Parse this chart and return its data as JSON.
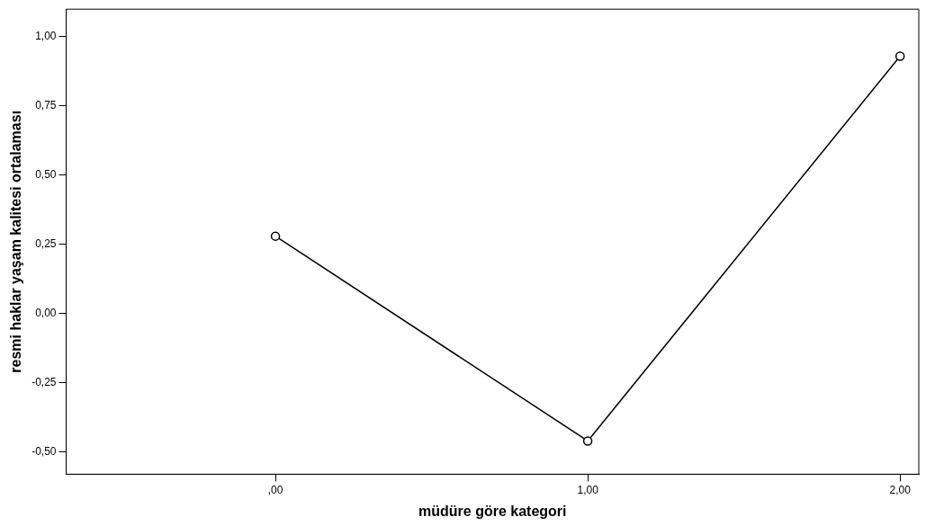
{
  "chart_data": {
    "type": "line",
    "xlabel": "müdüre göre kategori",
    "ylabel": "resmi haklar yaşam kalitesi ortalaması",
    "x": [
      0,
      1,
      2
    ],
    "series": [
      {
        "color": "#000000",
        "values": [
          0.28,
          -0.46,
          0.93
        ]
      }
    ],
    "xlim": [
      -0.67,
      2.06
    ],
    "xticks": [
      {
        "value": 0,
        "label": ",00"
      },
      {
        "value": 1,
        "label": "1,00"
      },
      {
        "value": 2,
        "label": "2,00"
      }
    ],
    "ylim": [
      -0.58,
      1.1
    ],
    "yticks": [
      {
        "value": -0.5,
        "label": "-0,50"
      },
      {
        "value": -0.25,
        "label": "-0,25"
      },
      {
        "value": 0,
        "label": "0,00"
      },
      {
        "value": 0.25,
        "label": "0,25"
      },
      {
        "value": 0.5,
        "label": "0,50"
      },
      {
        "value": 0.75,
        "label": "0,75"
      },
      {
        "value": 1,
        "label": "1,00"
      }
    ],
    "grid": false,
    "legend": false,
    "marker": "circle",
    "line_style": "solid"
  }
}
